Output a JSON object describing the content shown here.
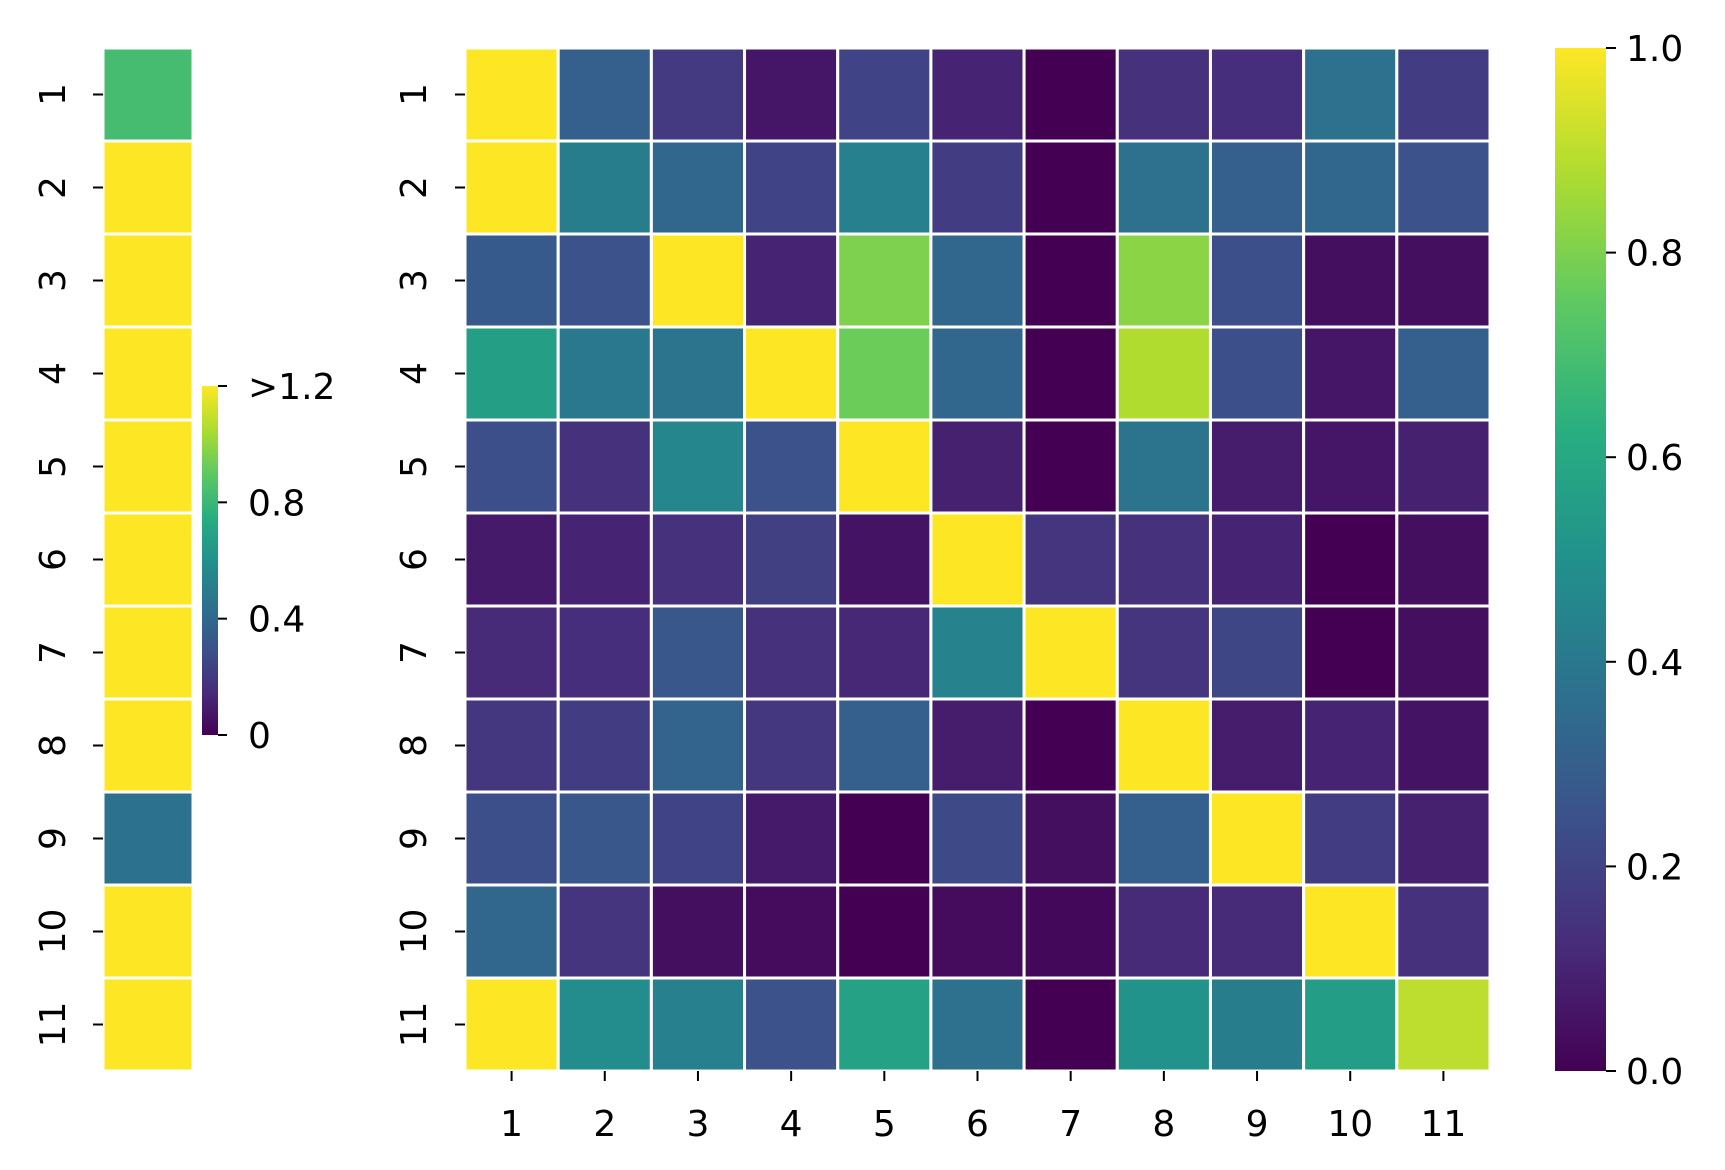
{
  "chart_data": [
    {
      "type": "heatmap",
      "name": "left-column-heatmap",
      "rows": [
        "1",
        "2",
        "3",
        "4",
        "5",
        "6",
        "7",
        "8",
        "9",
        "10",
        "11"
      ],
      "values": [
        0.83,
        1.3,
        1.3,
        1.3,
        1.3,
        1.3,
        1.3,
        1.3,
        0.45,
        1.3,
        1.3
      ],
      "vmin": 0,
      "vmax": 1.2,
      "colorbar": {
        "ticks": [
          0,
          0.4,
          0.8,
          1.2
        ],
        "tick_labels": [
          "0",
          "0.4",
          "0.8",
          ">1.2"
        ]
      }
    },
    {
      "type": "heatmap",
      "name": "main-heatmap",
      "rows": [
        "1",
        "2",
        "3",
        "4",
        "5",
        "6",
        "7",
        "8",
        "9",
        "10",
        "11"
      ],
      "columns": [
        "1",
        "2",
        "3",
        "4",
        "5",
        "6",
        "7",
        "8",
        "9",
        "10",
        "11"
      ],
      "values": [
        [
          1.0,
          0.3,
          0.17,
          0.06,
          0.2,
          0.1,
          0.0,
          0.14,
          0.13,
          0.37,
          0.18
        ],
        [
          1.0,
          0.42,
          0.33,
          0.2,
          0.43,
          0.18,
          0.0,
          0.37,
          0.3,
          0.33,
          0.25
        ],
        [
          0.28,
          0.25,
          1.0,
          0.1,
          0.8,
          0.33,
          0.0,
          0.82,
          0.24,
          0.04,
          0.04
        ],
        [
          0.56,
          0.4,
          0.38,
          1.0,
          0.77,
          0.33,
          0.0,
          0.88,
          0.24,
          0.06,
          0.3
        ],
        [
          0.24,
          0.14,
          0.46,
          0.25,
          1.0,
          0.09,
          0.0,
          0.38,
          0.08,
          0.06,
          0.09
        ],
        [
          0.07,
          0.1,
          0.14,
          0.19,
          0.05,
          1.0,
          0.15,
          0.14,
          0.1,
          0.0,
          0.04
        ],
        [
          0.12,
          0.13,
          0.27,
          0.14,
          0.11,
          0.44,
          1.0,
          0.15,
          0.21,
          0.0,
          0.04
        ],
        [
          0.16,
          0.18,
          0.32,
          0.16,
          0.3,
          0.08,
          0.0,
          1.0,
          0.08,
          0.1,
          0.05
        ],
        [
          0.24,
          0.27,
          0.2,
          0.07,
          0.0,
          0.22,
          0.04,
          0.3,
          1.0,
          0.18,
          0.09
        ],
        [
          0.33,
          0.15,
          0.04,
          0.03,
          0.0,
          0.03,
          0.02,
          0.12,
          0.12,
          1.0,
          0.14
        ],
        [
          1.0,
          0.48,
          0.43,
          0.25,
          0.57,
          0.37,
          0.0,
          0.51,
          0.42,
          0.55,
          0.9
        ]
      ],
      "vmin": 0,
      "vmax": 1.0,
      "colorbar": {
        "ticks": [
          0,
          0.2,
          0.4,
          0.6,
          0.8,
          1.0
        ],
        "tick_labels": [
          "0.0",
          "0.2",
          "0.4",
          "0.6",
          "0.8",
          "1.0"
        ]
      }
    }
  ]
}
